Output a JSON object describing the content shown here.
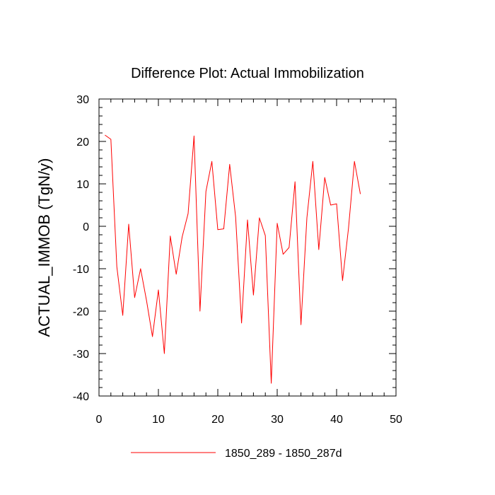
{
  "chart_data": {
    "type": "line",
    "title": "Difference Plot: Actual Immobilization",
    "xlabel": "",
    "ylabel": "ACTUAL_IMMOB  (TgN/y)",
    "xlim": [
      0,
      50
    ],
    "ylim": [
      -40,
      30
    ],
    "x_ticks": [
      0,
      10,
      20,
      30,
      40,
      50
    ],
    "y_ticks": [
      -40,
      -30,
      -20,
      -10,
      0,
      10,
      20,
      30
    ],
    "x_minor_step": 2,
    "y_minor_step": 2,
    "grid": false,
    "legend_position": "bottom",
    "series": [
      {
        "name": "1850_289 - 1850_287d",
        "color": "#ff0000",
        "x": [
          1,
          2,
          3,
          4,
          5,
          6,
          7,
          8,
          9,
          10,
          11,
          12,
          13,
          14,
          15,
          16,
          17,
          18,
          19,
          20,
          21,
          22,
          23,
          24,
          25,
          26,
          27,
          28,
          29,
          30,
          31,
          32,
          33,
          34,
          35,
          36,
          37,
          38,
          39,
          40,
          41,
          42,
          43,
          44
        ],
        "values": [
          21.5,
          20.5,
          -9.5,
          -21,
          0.5,
          -16.8,
          -10,
          -17.5,
          -26,
          -15,
          -30,
          -2.3,
          -11.3,
          -2.5,
          3,
          21.3,
          -20,
          8.2,
          15.3,
          -0.8,
          -0.6,
          14.6,
          2.2,
          -22.8,
          1.5,
          -16.2,
          2,
          -2.2,
          -37,
          0.7,
          -6.6,
          -5,
          10.5,
          -23.2,
          2,
          15.3,
          -5.5,
          11.5,
          5,
          5.3,
          -12.8,
          -0.5,
          15.3,
          7.6
        ]
      }
    ]
  }
}
